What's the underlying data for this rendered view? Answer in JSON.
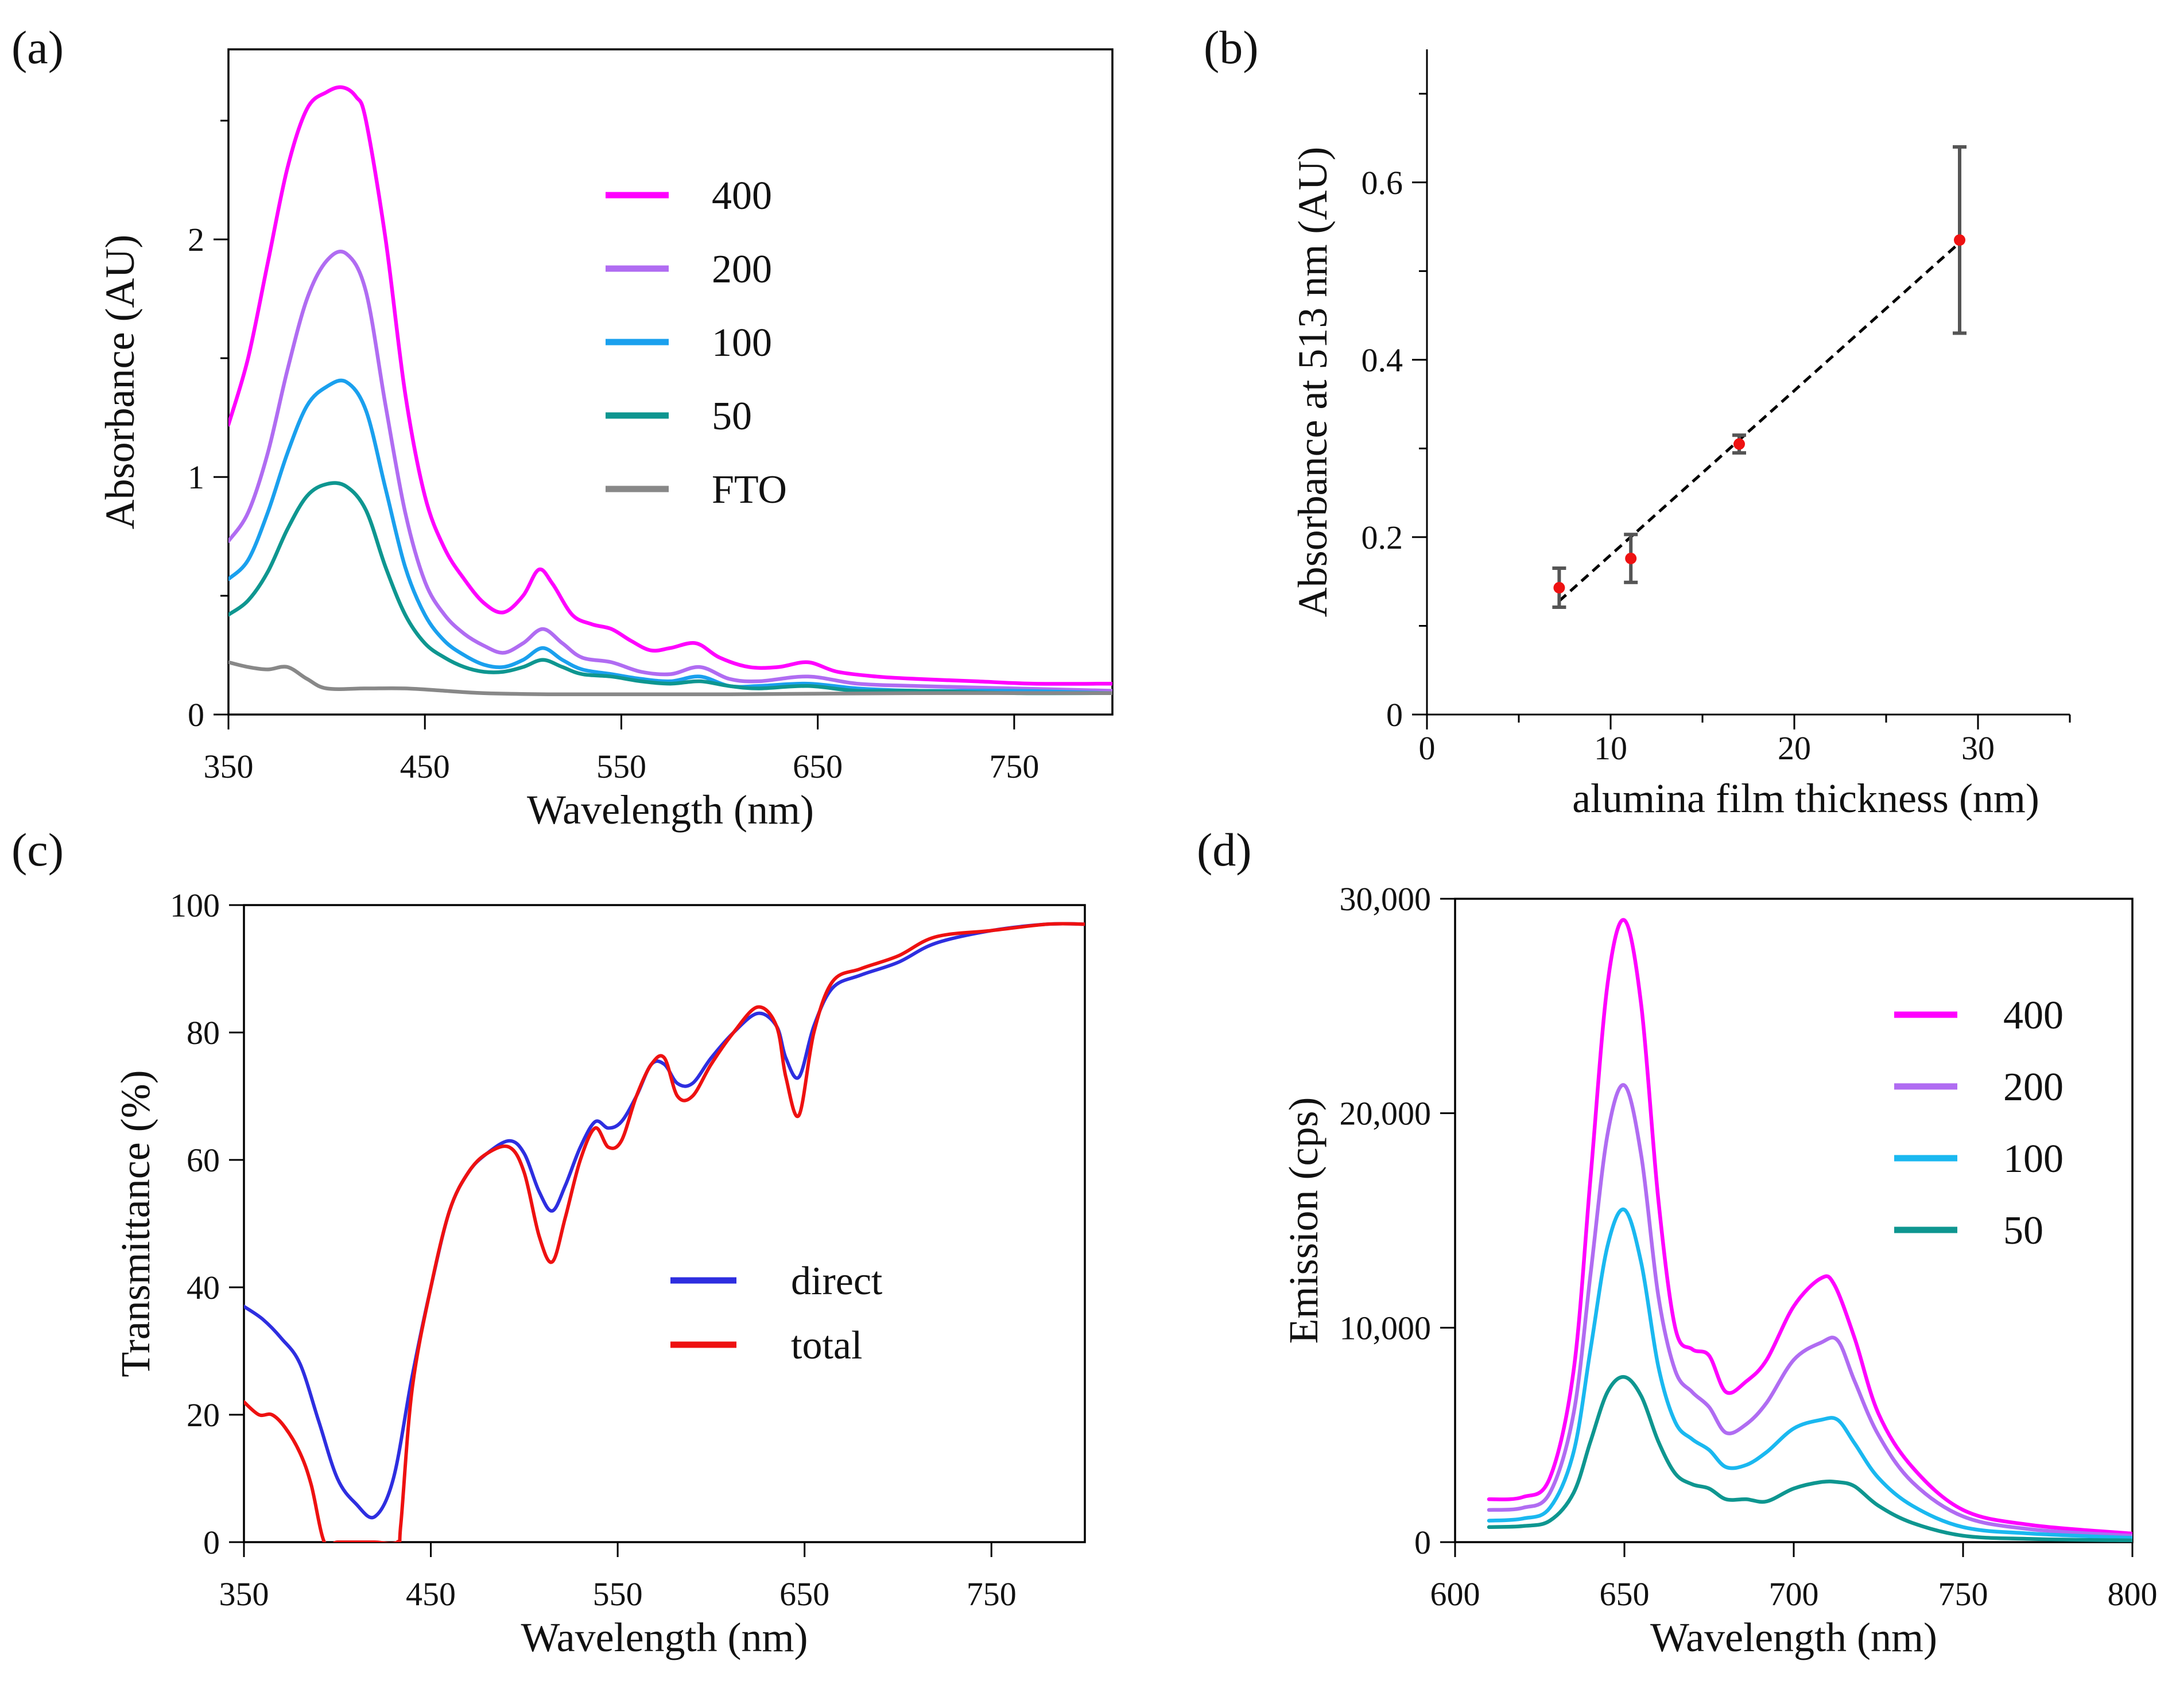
{
  "chart_data": [
    {
      "panel_label": "(a)",
      "type": "line",
      "xlabel": "Wavelength (nm)",
      "ylabel": "Absorbance (AU)",
      "xlim": [
        350,
        800
      ],
      "ylim": [
        0,
        2.8
      ],
      "xticks": [
        350,
        450,
        550,
        650,
        750
      ],
      "yticks": [
        0,
        1,
        2
      ],
      "legend": "upper-center",
      "series": [
        {
          "name": "400",
          "color": "#ff00ff",
          "x": [
            350,
            360,
            370,
            380,
            390,
            400,
            408,
            415,
            420,
            430,
            440,
            450,
            460,
            470,
            480,
            490,
            500,
            508,
            515,
            525,
            535,
            545,
            555,
            565,
            575,
            588,
            600,
            615,
            630,
            645,
            660,
            680,
            700,
            730,
            760,
            800
          ],
          "y": [
            1.22,
            1.5,
            1.9,
            2.3,
            2.55,
            2.62,
            2.64,
            2.6,
            2.5,
            2.0,
            1.35,
            0.92,
            0.7,
            0.57,
            0.47,
            0.43,
            0.5,
            0.61,
            0.55,
            0.42,
            0.38,
            0.36,
            0.31,
            0.27,
            0.28,
            0.3,
            0.24,
            0.2,
            0.2,
            0.22,
            0.18,
            0.16,
            0.15,
            0.14,
            0.13,
            0.13
          ]
        },
        {
          "name": "200",
          "color": "#b06cf2",
          "x": [
            350,
            360,
            370,
            380,
            390,
            400,
            410,
            420,
            430,
            440,
            450,
            460,
            470,
            480,
            490,
            500,
            510,
            520,
            530,
            545,
            560,
            575,
            590,
            605,
            620,
            645,
            670,
            700,
            750,
            800
          ],
          "y": [
            0.73,
            0.85,
            1.1,
            1.45,
            1.75,
            1.91,
            1.94,
            1.78,
            1.3,
            0.85,
            0.56,
            0.42,
            0.34,
            0.29,
            0.26,
            0.3,
            0.36,
            0.3,
            0.24,
            0.22,
            0.18,
            0.17,
            0.2,
            0.15,
            0.14,
            0.16,
            0.13,
            0.12,
            0.11,
            0.1
          ]
        },
        {
          "name": "100",
          "color": "#1aa0ee",
          "x": [
            350,
            360,
            370,
            380,
            390,
            400,
            410,
            420,
            430,
            440,
            450,
            460,
            470,
            480,
            490,
            500,
            510,
            520,
            530,
            545,
            560,
            575,
            590,
            605,
            620,
            645,
            670,
            700,
            750,
            800
          ],
          "y": [
            0.57,
            0.65,
            0.85,
            1.1,
            1.3,
            1.38,
            1.4,
            1.28,
            0.95,
            0.62,
            0.42,
            0.31,
            0.25,
            0.21,
            0.2,
            0.23,
            0.28,
            0.23,
            0.19,
            0.17,
            0.15,
            0.14,
            0.16,
            0.12,
            0.12,
            0.13,
            0.11,
            0.1,
            0.1,
            0.09
          ]
        },
        {
          "name": "50",
          "color": "#0e9690",
          "x": [
            350,
            360,
            370,
            380,
            390,
            400,
            410,
            420,
            430,
            440,
            450,
            460,
            470,
            480,
            490,
            500,
            510,
            520,
            530,
            545,
            560,
            575,
            590,
            605,
            620,
            645,
            670,
            700,
            750,
            800
          ],
          "y": [
            0.42,
            0.48,
            0.6,
            0.78,
            0.92,
            0.97,
            0.96,
            0.86,
            0.62,
            0.42,
            0.3,
            0.24,
            0.2,
            0.18,
            0.18,
            0.2,
            0.23,
            0.2,
            0.17,
            0.16,
            0.14,
            0.13,
            0.14,
            0.12,
            0.11,
            0.12,
            0.1,
            0.1,
            0.09,
            0.09
          ]
        },
        {
          "name": "FTO",
          "color": "#888888",
          "x": [
            350,
            360,
            370,
            380,
            390,
            400,
            420,
            440,
            460,
            480,
            520,
            600,
            700,
            800
          ],
          "y": [
            0.22,
            0.2,
            0.19,
            0.2,
            0.15,
            0.11,
            0.11,
            0.11,
            0.1,
            0.09,
            0.085,
            0.085,
            0.09,
            0.09
          ]
        }
      ]
    },
    {
      "panel_label": "(b)",
      "type": "scatter",
      "xlabel": "alumina film thickness (nm)",
      "ylabel": "Absorbance at 513 nm (AU)",
      "xlim": [
        0,
        35
      ],
      "ylim": [
        0,
        0.75
      ],
      "xticks": [
        0,
        10,
        20,
        30
      ],
      "yticks": [
        0,
        0.2,
        0.4,
        0.6
      ],
      "ytick_labels": [
        "0",
        "0.2",
        "0.4",
        "0.6"
      ],
      "points": [
        {
          "x": 7.2,
          "y": 0.143,
          "err": 0.022
        },
        {
          "x": 11.1,
          "y": 0.176,
          "err": 0.027
        },
        {
          "x": 17.0,
          "y": 0.305,
          "err": 0.01
        },
        {
          "x": 29.0,
          "y": 0.535,
          "err": 0.105
        }
      ],
      "fit_line": {
        "x": [
          7.2,
          29.0
        ],
        "y": [
          0.128,
          0.532
        ]
      },
      "marker_color": "#ee1111",
      "fit_color": "#000000"
    },
    {
      "panel_label": "(c)",
      "type": "line",
      "xlabel": "Wavelength (nm)",
      "ylabel": "Transmittance (%)",
      "xlim": [
        350,
        800
      ],
      "ylim": [
        0,
        100
      ],
      "xticks": [
        350,
        450,
        550,
        650,
        750
      ],
      "yticks": [
        0,
        20,
        40,
        60,
        80,
        100
      ],
      "legend": "center",
      "series": [
        {
          "name": "direct",
          "color": "#2e2ee0",
          "x": [
            350,
            360,
            370,
            380,
            390,
            400,
            410,
            420,
            430,
            440,
            450,
            460,
            470,
            480,
            492,
            500,
            508,
            515,
            522,
            530,
            538,
            545,
            552,
            560,
            568,
            575,
            582,
            590,
            600,
            612,
            625,
            635,
            640,
            647,
            655,
            665,
            680,
            700,
            720,
            750,
            780,
            800
          ],
          "y": [
            37,
            35,
            32,
            28,
            19,
            10,
            6,
            4,
            10,
            26,
            40,
            52,
            58,
            61,
            63,
            61,
            55,
            52,
            56,
            62,
            66,
            65,
            66,
            70,
            75,
            75,
            72,
            72,
            76,
            80,
            83,
            81,
            76,
            73,
            81,
            87,
            89,
            91,
            94,
            96,
            97,
            97
          ]
        },
        {
          "name": "total",
          "color": "#ee1111",
          "x": [
            350,
            358,
            365,
            372,
            380,
            386,
            393,
            400,
            410,
            420,
            432,
            434,
            440,
            450,
            460,
            470,
            480,
            492,
            500,
            508,
            515,
            522,
            530,
            538,
            545,
            552,
            560,
            568,
            575,
            582,
            590,
            600,
            612,
            625,
            635,
            640,
            647,
            655,
            665,
            680,
            700,
            720,
            750,
            780,
            800
          ],
          "y": [
            22,
            20,
            20,
            18,
            14,
            9,
            0,
            0,
            0,
            0,
            0,
            3,
            24,
            40,
            52,
            58,
            61,
            62,
            58,
            48,
            44,
            51,
            60,
            65,
            62,
            63,
            70,
            75,
            76,
            70,
            70,
            75,
            80,
            84,
            81,
            73,
            67,
            80,
            88,
            90,
            92,
            95,
            96,
            97,
            97
          ]
        }
      ]
    },
    {
      "panel_label": "(d)",
      "type": "line",
      "xlabel": "Wavelength (nm)",
      "ylabel": "Emission (cps)",
      "xlim": [
        600,
        800
      ],
      "ylim": [
        0,
        30000
      ],
      "xticks": [
        600,
        650,
        700,
        750,
        800
      ],
      "yticks": [
        0,
        10000,
        20000,
        30000
      ],
      "ytick_labels": [
        "0",
        "10,000",
        "20,000",
        "30,000"
      ],
      "legend": "upper-right",
      "series": [
        {
          "name": "400",
          "color": "#ff00ff",
          "x": [
            610,
            620,
            628,
            635,
            640,
            645,
            650,
            655,
            660,
            665,
            670,
            675,
            680,
            686,
            692,
            700,
            708,
            712,
            718,
            725,
            735,
            750,
            770,
            800
          ],
          "y": [
            2000,
            2100,
            3000,
            8000,
            17000,
            26000,
            29000,
            25000,
            16000,
            10000,
            9000,
            8700,
            7000,
            7500,
            8500,
            11000,
            12300,
            12000,
            9500,
            6000,
            3500,
            1500,
            800,
            400
          ]
        },
        {
          "name": "200",
          "color": "#b06cf2",
          "x": [
            610,
            620,
            628,
            635,
            640,
            645,
            650,
            655,
            660,
            665,
            670,
            675,
            680,
            686,
            692,
            700,
            708,
            713,
            718,
            725,
            735,
            750,
            770,
            800
          ],
          "y": [
            1500,
            1600,
            2300,
            6000,
            12500,
            19000,
            21300,
            18000,
            11500,
            8000,
            7000,
            6300,
            5100,
            5500,
            6500,
            8500,
            9300,
            9400,
            7500,
            5000,
            2800,
            1200,
            600,
            300
          ]
        },
        {
          "name": "100",
          "color": "#1ab8f0",
          "x": [
            610,
            620,
            628,
            635,
            640,
            645,
            650,
            655,
            660,
            665,
            670,
            675,
            680,
            686,
            692,
            700,
            708,
            713,
            718,
            725,
            735,
            750,
            770,
            800
          ],
          "y": [
            1000,
            1100,
            1600,
            4200,
            9000,
            13800,
            15500,
            13000,
            8200,
            5600,
            4800,
            4300,
            3500,
            3600,
            4200,
            5300,
            5700,
            5700,
            4600,
            3000,
            1700,
            700,
            400,
            200
          ]
        },
        {
          "name": "50",
          "color": "#0e9690",
          "x": [
            610,
            620,
            628,
            635,
            640,
            645,
            650,
            655,
            660,
            665,
            670,
            675,
            680,
            686,
            692,
            700,
            708,
            713,
            718,
            725,
            735,
            750,
            770,
            800
          ],
          "y": [
            700,
            750,
            1000,
            2300,
            4700,
            7000,
            7700,
            6800,
            4700,
            3200,
            2700,
            2500,
            2000,
            2000,
            1900,
            2500,
            2800,
            2800,
            2600,
            1700,
            900,
            300,
            150,
            80
          ]
        }
      ]
    }
  ]
}
